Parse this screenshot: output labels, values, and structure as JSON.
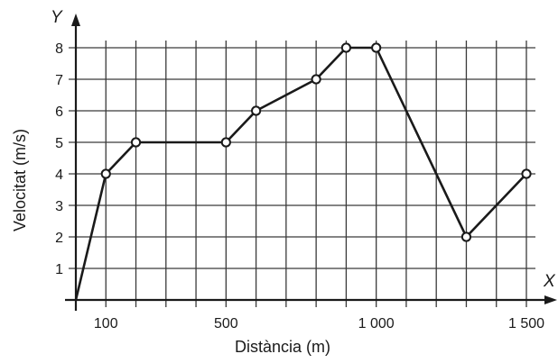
{
  "chart_data": {
    "type": "line",
    "title": "",
    "xlabel": "Distància (m)",
    "ylabel": "Velocitat (m/s)",
    "x_axis_letter": "X",
    "y_axis_letter": "Y",
    "xlim": [
      0,
      1500
    ],
    "ylim": [
      0,
      8
    ],
    "x_grid_step": 100,
    "y_grid_step": 1,
    "grid": true,
    "x_ticks": [
      {
        "value": 100,
        "label": "100"
      },
      {
        "value": 500,
        "label": "500"
      },
      {
        "value": 1000,
        "label": "1 000"
      },
      {
        "value": 1500,
        "label": "1 500"
      }
    ],
    "y_ticks": [
      {
        "value": 1,
        "label": "1"
      },
      {
        "value": 2,
        "label": "2"
      },
      {
        "value": 3,
        "label": "3"
      },
      {
        "value": 4,
        "label": "4"
      },
      {
        "value": 5,
        "label": "5"
      },
      {
        "value": 6,
        "label": "6"
      },
      {
        "value": 7,
        "label": "7"
      },
      {
        "value": 8,
        "label": "8"
      }
    ],
    "series": [
      {
        "x": [
          0,
          100,
          200,
          500,
          600,
          800,
          900,
          1000,
          1300,
          1500
        ],
        "y": [
          0,
          4,
          5,
          5,
          6,
          7,
          8,
          8,
          2,
          4
        ]
      }
    ],
    "colors": {
      "line": "#1a1a1a",
      "grid": "#3a3a3a",
      "axis": "#1a1a1a"
    }
  }
}
